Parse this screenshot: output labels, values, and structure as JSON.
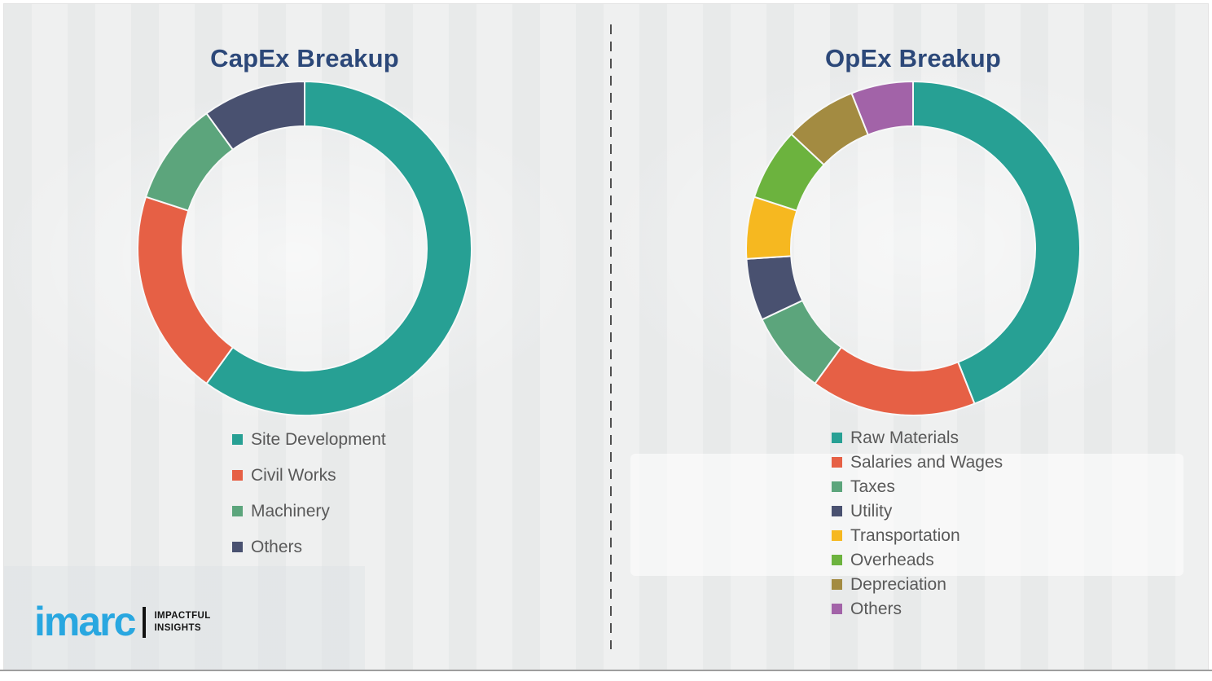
{
  "page": {
    "background_color": "#eff0f0",
    "divider_style": "vertical-dashed"
  },
  "styles": {
    "title_color": "#2C4879",
    "legend_text_color": "#595959",
    "divider_color": "#4f4f4f",
    "segment_gap_color": "#f7f8f8",
    "logo_blue": "#29A7E0"
  },
  "chart_data": [
    {
      "type": "donut",
      "title": "CapEx Breakup",
      "units": "percent",
      "direction": "clockwise",
      "start_angle_deg": 0,
      "hole_ratio": 0.73,
      "legend_position": "below-left",
      "segments": [
        {
          "label": "Site Development",
          "value": 60,
          "color": "#27A094"
        },
        {
          "label": "Civil Works",
          "value": 20,
          "color": "#E66045"
        },
        {
          "label": "Machinery",
          "value": 10,
          "color": "#5CA57C"
        },
        {
          "label": "Others",
          "value": 10,
          "color": "#495170"
        }
      ]
    },
    {
      "type": "donut",
      "title": "OpEx Breakup",
      "units": "percent",
      "direction": "clockwise",
      "start_angle_deg": 0,
      "hole_ratio": 0.73,
      "legend_position": "below-left",
      "segments": [
        {
          "label": "Raw Materials",
          "value": 44,
          "color": "#27A094"
        },
        {
          "label": "Salaries and Wages",
          "value": 16,
          "color": "#E66045"
        },
        {
          "label": "Taxes",
          "value": 8,
          "color": "#5CA57C"
        },
        {
          "label": "Utility",
          "value": 6,
          "color": "#495170"
        },
        {
          "label": "Transportation",
          "value": 6,
          "color": "#F6B820"
        },
        {
          "label": "Overheads",
          "value": 7,
          "color": "#6CB33E"
        },
        {
          "label": "Depreciation",
          "value": 7,
          "color": "#A38B41"
        },
        {
          "label": "Others",
          "value": 6,
          "color": "#A263A8"
        }
      ]
    }
  ],
  "logo": {
    "wordmark": "imarc",
    "tagline_line1": "IMPACTFUL",
    "tagline_line2": "INSIGHTS"
  }
}
